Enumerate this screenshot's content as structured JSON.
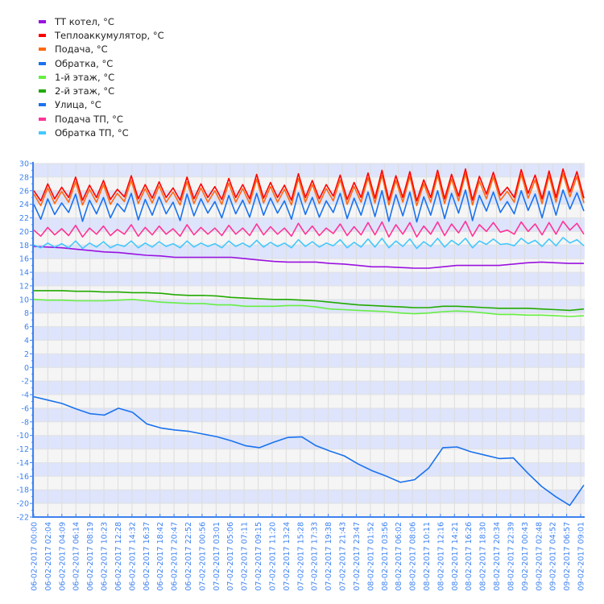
{
  "chart_data": {
    "type": "line",
    "title": "",
    "xlabel": "",
    "ylabel": "",
    "ylim": [
      -22,
      30
    ],
    "y_ticks": [
      30,
      28,
      26,
      24,
      22,
      20,
      18,
      16,
      14,
      12,
      10,
      8,
      6,
      4,
      2,
      0,
      -2,
      -4,
      -6,
      -8,
      -10,
      -12,
      -14,
      -16,
      -18,
      -20,
      -22
    ],
    "grid": true,
    "stripes": [
      "#dde4fb",
      "#f5f5f5"
    ],
    "axis_color": "#3d82f0",
    "legend_position": "top-left",
    "x_labels": [
      "06-02-2017 00:00",
      "06-02-2017 02:04",
      "06-02-2017 04:09",
      "06-02-2017 06:14",
      "06-02-2017 08:19",
      "06-02-2017 10:23",
      "06-02-2017 12:28",
      "06-02-2017 14:32",
      "06-02-2017 16:37",
      "06-02-2017 18:42",
      "06-02-2017 20:47",
      "06-02-2017 22:52",
      "07-02-2017 00:56",
      "07-02-2017 03:01",
      "07-02-2017 05:06",
      "07-02-2017 07:11",
      "07-02-2017 09:15",
      "07-02-2017 11:20",
      "07-02-2017 13:24",
      "07-02-2017 15:28",
      "07-02-2017 17:33",
      "07-02-2017 19:38",
      "07-02-2017 21:43",
      "07-02-2017 23:47",
      "08-02-2017 01:52",
      "08-02-2017 03:56",
      "08-02-2017 06:02",
      "08-02-2017 08:06",
      "08-02-2017 10:11",
      "08-02-2017 12:16",
      "08-02-2017 14:21",
      "08-02-2017 16:26",
      "08-02-2017 18:30",
      "08-02-2017 20:34",
      "08-02-2017 22:39",
      "09-02-2017 00:43",
      "09-02-2017 02:48",
      "09-02-2017 04:52",
      "09-02-2017 06:57",
      "09-02-2017 09:01"
    ],
    "series": [
      {
        "name": "ТТ котел, °C",
        "color": "#9a11e0",
        "values": [
          17.8,
          17.7,
          17.6,
          17.4,
          17.2,
          17.0,
          16.9,
          16.7,
          16.5,
          16.4,
          16.2,
          16.2,
          16.2,
          16.2,
          16.2,
          16.0,
          15.8,
          15.6,
          15.5,
          15.5,
          15.5,
          15.3,
          15.2,
          15.0,
          14.8,
          14.8,
          14.7,
          14.6,
          14.6,
          14.8,
          15.0,
          15.0,
          15.0,
          15.0,
          15.2,
          15.4,
          15.5,
          15.4,
          15.3,
          15.3
        ]
      },
      {
        "name": "Теплоаккумулятор, °C",
        "color": "#ff0000",
        "values": [
          26,
          24.5,
          27,
          24.8,
          26.5,
          25,
          28,
          24.6,
          26.8,
          25,
          27.5,
          24.7,
          26.2,
          25.1,
          28.2,
          24.8,
          26.9,
          24.9,
          27.3,
          25,
          26.4,
          24.6,
          28,
          24.8,
          27,
          25,
          26.6,
          24.7,
          27.8,
          25,
          26.9,
          24.8,
          28.4,
          24.9,
          27.2,
          25,
          26.8,
          24.6,
          28.5,
          25,
          27.5,
          24.8,
          26.9,
          25.2,
          28.3,
          24.7,
          27.2,
          25,
          28.6,
          24.9,
          29,
          24.6,
          28.2,
          25,
          28.8,
          24.5,
          27.6,
          25,
          29,
          24.8,
          28.4,
          25.2,
          29.2,
          24.6,
          28.1,
          25.5,
          28.7,
          25.3,
          26.5,
          25,
          29.1,
          25.6,
          28.3,
          24.8,
          28.9,
          25,
          29.2,
          25.8,
          28.8,
          24.9
        ]
      },
      {
        "name": "Подача, °C",
        "color": "#ff6a10",
        "values": [
          25.5,
          23.8,
          26.4,
          24.1,
          25.9,
          24.3,
          27.3,
          23.9,
          26.2,
          24.3,
          26.9,
          24,
          25.6,
          24.4,
          27.5,
          24.1,
          26.3,
          24.2,
          26.7,
          24.3,
          25.8,
          23.9,
          27.3,
          24.1,
          26.4,
          24.3,
          26,
          24,
          27.1,
          24.3,
          26.3,
          24.1,
          27.7,
          24.2,
          26.6,
          24.3,
          26.2,
          23.9,
          27.8,
          24.3,
          26.9,
          24.1,
          26.3,
          24.5,
          27.6,
          24,
          26.6,
          24.3,
          27.9,
          24.2,
          28.3,
          23.9,
          27.5,
          24.3,
          28.1,
          23.8,
          27,
          24.3,
          28.3,
          24.1,
          27.7,
          24.5,
          28.5,
          23.9,
          27.4,
          24.8,
          28,
          24.6,
          25.9,
          24.3,
          28.4,
          24.9,
          27.6,
          24.1,
          28.2,
          24.3,
          28.5,
          25.1,
          28.1,
          24.2
        ]
      },
      {
        "name": "Обратка, °C",
        "color": "#1a72ee",
        "values": [
          24,
          21.8,
          24.8,
          22.5,
          24.2,
          22.8,
          25.5,
          21.5,
          24.6,
          22.6,
          25,
          22,
          24.1,
          22.9,
          25.6,
          21.7,
          24.7,
          22.4,
          25.1,
          22.6,
          24.3,
          21.6,
          25.5,
          22.3,
          24.8,
          22.7,
          24.4,
          22,
          25.3,
          22.6,
          24.6,
          22.1,
          25.6,
          22.4,
          24.9,
          22.7,
          24.5,
          21.8,
          25.7,
          22.5,
          25,
          22.1,
          24.5,
          22.8,
          25.6,
          21.9,
          24.9,
          22.4,
          25.8,
          22.2,
          26,
          21.5,
          25.4,
          22.3,
          25.8,
          21.4,
          25.1,
          22.4,
          26,
          21.9,
          25.6,
          22.7,
          26.1,
          21.6,
          25.3,
          23,
          25.8,
          22.8,
          24.4,
          22.6,
          26,
          23.1,
          25.5,
          22,
          25.9,
          22.4,
          26.1,
          23.3,
          25.7,
          23
        ]
      },
      {
        "name": "1-й этаж, °C",
        "color": "#66ee44",
        "values": [
          10.0,
          9.9,
          9.9,
          9.8,
          9.8,
          9.8,
          9.9,
          10.0,
          9.8,
          9.6,
          9.5,
          9.4,
          9.4,
          9.2,
          9.2,
          9.0,
          9.0,
          9.0,
          9.1,
          9.1,
          8.9,
          8.6,
          8.5,
          8.4,
          8.3,
          8.2,
          8.0,
          7.9,
          8.0,
          8.2,
          8.3,
          8.2,
          8.0,
          7.8,
          7.8,
          7.7,
          7.7,
          7.6,
          7.5,
          7.6
        ]
      },
      {
        "name": "2-й этаж, °C",
        "color": "#22aa00",
        "values": [
          11.3,
          11.3,
          11.3,
          11.2,
          11.2,
          11.1,
          11.1,
          11.0,
          11.0,
          10.9,
          10.7,
          10.6,
          10.6,
          10.5,
          10.3,
          10.2,
          10.1,
          10.0,
          10.0,
          9.9,
          9.8,
          9.6,
          9.4,
          9.2,
          9.1,
          9.0,
          8.9,
          8.8,
          8.8,
          9.0,
          9.0,
          8.9,
          8.8,
          8.7,
          8.7,
          8.7,
          8.6,
          8.5,
          8.4,
          8.6
        ]
      },
      {
        "name": "Улица, °C",
        "color": "#1a72ee",
        "values": [
          -4.3,
          -4.8,
          -5.3,
          -6.1,
          -6.8,
          -7.0,
          -6.0,
          -6.6,
          -8.3,
          -8.9,
          -9.2,
          -9.4,
          -9.8,
          -10.2,
          -10.8,
          -11.5,
          -11.8,
          -11.0,
          -10.3,
          -10.2,
          -11.5,
          -12.3,
          -13.0,
          -14.2,
          -15.2,
          -16.0,
          -16.9,
          -16.5,
          -14.8,
          -11.8,
          -11.7,
          -12.4,
          -12.9,
          -13.4,
          -13.3,
          -15.5,
          -17.5,
          -19.0,
          -20.3,
          -17.3
        ]
      },
      {
        "name": "Подача ТП, °C",
        "color": "#ff3399",
        "values": [
          20.2,
          19.3,
          20.6,
          19.5,
          20.4,
          19.4,
          20.9,
          19.2,
          20.5,
          19.6,
          20.8,
          19.4,
          20.3,
          19.6,
          21,
          19.3,
          20.6,
          19.5,
          20.8,
          19.6,
          20.4,
          19.3,
          21,
          19.5,
          20.6,
          19.6,
          20.5,
          19.4,
          20.9,
          19.6,
          20.5,
          19.4,
          21.1,
          19.5,
          20.7,
          19.6,
          20.5,
          19.3,
          21.2,
          19.6,
          20.8,
          19.4,
          20.5,
          19.7,
          21.1,
          19.4,
          20.7,
          19.5,
          21.3,
          19.5,
          21.4,
          19.2,
          21,
          19.6,
          21.3,
          19.2,
          20.8,
          19.6,
          21.4,
          19.4,
          21.1,
          19.8,
          21.5,
          19.3,
          21,
          20,
          21.3,
          19.9,
          20.2,
          19.6,
          21.4,
          20,
          21.1,
          19.5,
          21.3,
          19.6,
          21.5,
          20.2,
          21.2,
          19.6
        ]
      },
      {
        "name": "Обратка ТП, °C",
        "color": "#44c8ff",
        "values": [
          18,
          17.6,
          18.3,
          17.7,
          18.2,
          17.6,
          18.6,
          17.5,
          18.3,
          17.7,
          18.5,
          17.6,
          18.1,
          17.8,
          18.6,
          17.6,
          18.3,
          17.7,
          18.5,
          17.8,
          18.2,
          17.6,
          18.6,
          17.7,
          18.3,
          17.8,
          18.2,
          17.6,
          18.6,
          17.8,
          18.3,
          17.7,
          18.7,
          17.7,
          18.4,
          17.8,
          18.3,
          17.6,
          18.8,
          17.8,
          18.5,
          17.7,
          18.3,
          17.9,
          18.8,
          17.6,
          18.4,
          17.7,
          18.9,
          17.7,
          19,
          17.6,
          18.6,
          17.8,
          18.9,
          17.5,
          18.5,
          17.8,
          19,
          17.7,
          18.7,
          18,
          19,
          17.6,
          18.6,
          18.1,
          18.9,
          18.1,
          18.2,
          17.9,
          19,
          18.2,
          18.7,
          17.8,
          18.9,
          17.9,
          19.1,
          18.3,
          18.8,
          17.9
        ]
      }
    ]
  }
}
